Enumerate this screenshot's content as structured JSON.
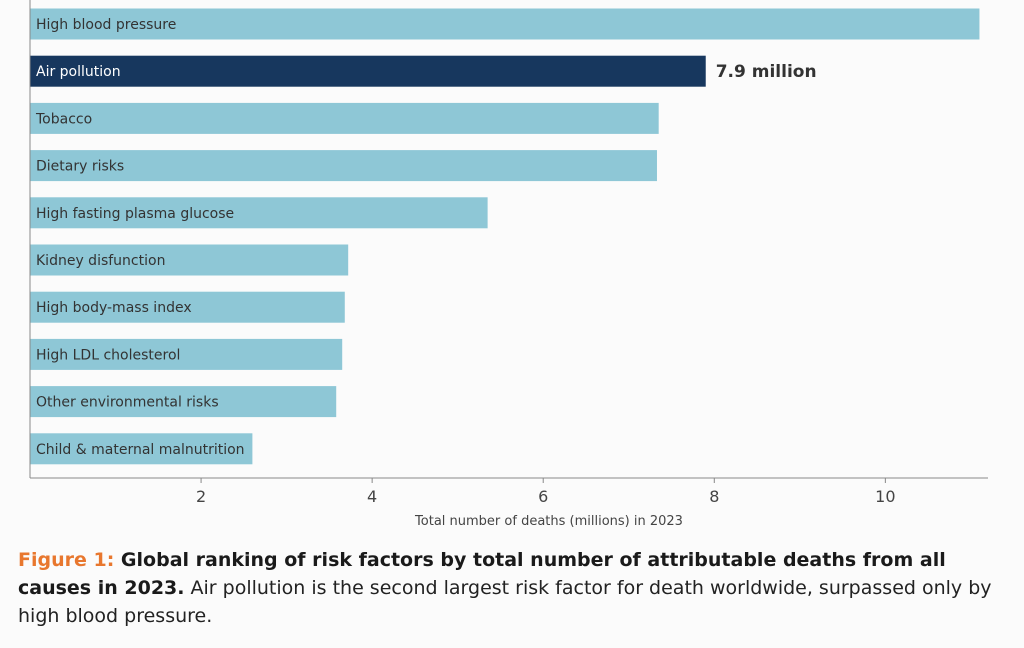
{
  "chart_data": {
    "type": "bar",
    "orientation": "horizontal",
    "categories": [
      "High blood pressure",
      "Air pollution",
      "Tobacco",
      "Dietary risks",
      "High fasting plasma glucose",
      "Kidney disfunction",
      "High body-mass index",
      "High LDL cholesterol",
      "Other environmental risks",
      "Child & maternal malnutrition"
    ],
    "values": [
      11.1,
      7.9,
      7.35,
      7.33,
      5.35,
      3.72,
      3.68,
      3.65,
      3.58,
      2.6
    ],
    "highlight_index": 1,
    "highlight_label": "7.9 million",
    "xlabel": "Total number of deaths (millions) in 2023",
    "xticks": [
      2,
      4,
      6,
      8,
      10
    ],
    "xlim": [
      0,
      11.2
    ],
    "grid": false,
    "colors": {
      "bar": "#8ec7d6",
      "highlight": "#17375e",
      "bar_label": "#333333",
      "highlight_text": "#ffffff",
      "axis": "#888888"
    }
  },
  "caption": {
    "label": "Figure 1:",
    "bold": " Global ranking of risk factors by total number of attributable deaths from all causes in 2023.",
    "body": " Air pollution is the second largest risk factor for death worldwide, surpassed only by high blood pressure.",
    "label_color": "#e8772e"
  }
}
